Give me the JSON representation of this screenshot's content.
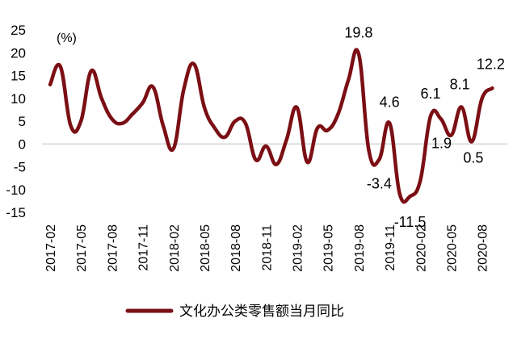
{
  "chart_data": {
    "type": "line",
    "title": "",
    "unit_label": "(%)",
    "xlabel": "",
    "ylabel": "",
    "ylim": [
      -15,
      25
    ],
    "yticks": [
      25,
      20,
      15,
      10,
      5,
      0,
      -5,
      -10,
      -15
    ],
    "xtick_labels": [
      "2017-02",
      "2017-05",
      "2017-08",
      "2017-11",
      "2018-02",
      "2018-05",
      "2018-08",
      "2018-11",
      "2019-02",
      "2019-05",
      "2019-08",
      "2019-11",
      "2020-02",
      "2020-05",
      "2020-08"
    ],
    "grid": false,
    "legend_position": "bottom",
    "color": "#7b0f14",
    "series": [
      {
        "name": "文化办公类零售额当月同比",
        "points": [
          {
            "x": "2017-02",
            "y": 13.0
          },
          {
            "x": "2017-03",
            "y": 17.0
          },
          {
            "x": "2017-04",
            "y": 4.0
          },
          {
            "x": "2017-05",
            "y": 5.0
          },
          {
            "x": "2017-06",
            "y": 16.0
          },
          {
            "x": "2017-07",
            "y": 10.0
          },
          {
            "x": "2017-08",
            "y": 5.5
          },
          {
            "x": "2017-09",
            "y": 4.5
          },
          {
            "x": "2017-10",
            "y": 6.5
          },
          {
            "x": "2017-11",
            "y": 9.0
          },
          {
            "x": "2017-12",
            "y": 12.5
          },
          {
            "x": "2018-01",
            "y": 4.0
          },
          {
            "x": "2018-02",
            "y": -1.0
          },
          {
            "x": "2018-03",
            "y": 12.0
          },
          {
            "x": "2018-04",
            "y": 17.5
          },
          {
            "x": "2018-05",
            "y": 8.0
          },
          {
            "x": "2018-06",
            "y": 3.5
          },
          {
            "x": "2018-07",
            "y": 1.5
          },
          {
            "x": "2018-08",
            "y": 5.0
          },
          {
            "x": "2018-09",
            "y": 4.5
          },
          {
            "x": "2018-10",
            "y": -3.5
          },
          {
            "x": "2018-11",
            "y": -0.5
          },
          {
            "x": "2018-12",
            "y": -4.5
          },
          {
            "x": "2019-01",
            "y": 1.0
          },
          {
            "x": "2019-02",
            "y": 8.0
          },
          {
            "x": "2019-03",
            "y": -4.0
          },
          {
            "x": "2019-04",
            "y": 3.5
          },
          {
            "x": "2019-05",
            "y": 3.0
          },
          {
            "x": "2019-06",
            "y": 6.5
          },
          {
            "x": "2019-07",
            "y": 14.0
          },
          {
            "x": "2019-08",
            "y": 19.8
          },
          {
            "x": "2019-09",
            "y": -1.5
          },
          {
            "x": "2019-10",
            "y": -3.4
          },
          {
            "x": "2019-11",
            "y": 4.6
          },
          {
            "x": "2019-12",
            "y": -11.0
          },
          {
            "x": "2020-01",
            "y": -11.5
          },
          {
            "x": "2020-02",
            "y": -8.0
          },
          {
            "x": "2020-03",
            "y": 6.1
          },
          {
            "x": "2020-04",
            "y": 5.5
          },
          {
            "x": "2020-05",
            "y": 1.9
          },
          {
            "x": "2020-06",
            "y": 8.1
          },
          {
            "x": "2020-07",
            "y": 0.5
          },
          {
            "x": "2020-08",
            "y": 10.0
          },
          {
            "x": "2020-09",
            "y": 12.2
          }
        ]
      }
    ],
    "annotations": [
      {
        "text": "19.8",
        "x": "2019-08",
        "y": 19.8
      },
      {
        "text": "-3.4",
        "x": "2019-10",
        "y": -3.4
      },
      {
        "text": "4.6",
        "x": "2019-11",
        "y": 4.6
      },
      {
        "text": "-11.5",
        "x": "2020-01",
        "y": -11.5
      },
      {
        "text": "6.1",
        "x": "2020-03",
        "y": 6.1
      },
      {
        "text": "1.9",
        "x": "2020-05",
        "y": 1.9
      },
      {
        "text": "8.1",
        "x": "2020-06",
        "y": 8.1
      },
      {
        "text": "0.5",
        "x": "2020-07",
        "y": 0.5
      },
      {
        "text": "12.2",
        "x": "2020-09",
        "y": 12.2
      }
    ]
  }
}
